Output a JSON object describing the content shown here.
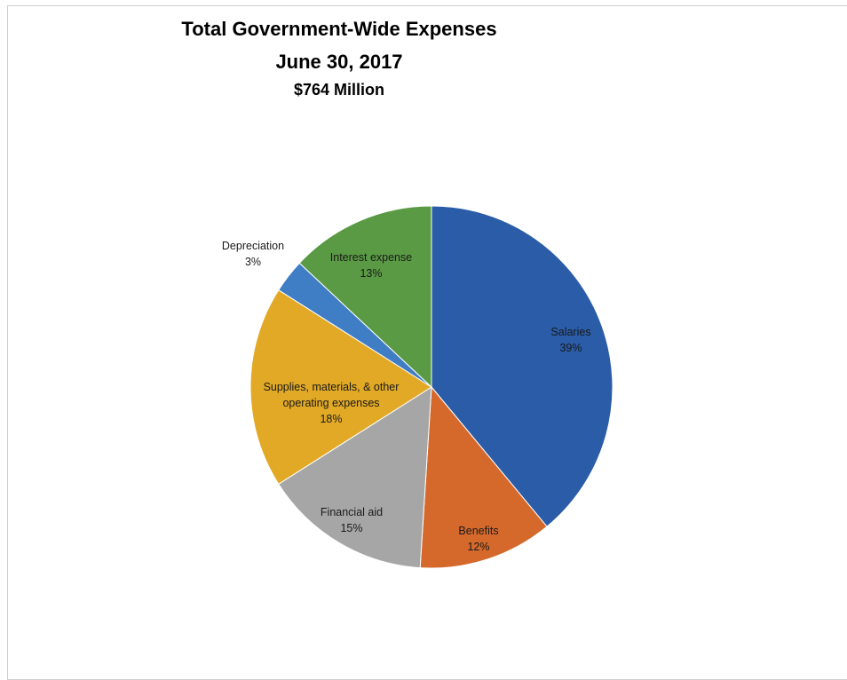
{
  "chart_data": {
    "type": "pie",
    "title": "Total Government-Wide Expenses",
    "subtitle": "June 30, 2017",
    "total": "$764 Million",
    "slices": [
      {
        "label": "Salaries",
        "percent_label": "39%",
        "value": 39,
        "color": "#2a5ca8"
      },
      {
        "label": "Benefits",
        "percent_label": "12%",
        "value": 12,
        "color": "#d5692b"
      },
      {
        "label": "Financial aid",
        "percent_label": "15%",
        "value": 15,
        "color": "#a6a6a6"
      },
      {
        "label": "Supplies, materials, & other operating expenses",
        "percent_label": "18%",
        "value": 18,
        "color": "#e1a925"
      },
      {
        "label": "Depreciation",
        "percent_label": "3%",
        "value": 3,
        "color": "#3f7dc4"
      },
      {
        "label": "Interest expense",
        "percent_label": "13%",
        "value": 13,
        "color": "#5a9a44"
      }
    ]
  }
}
